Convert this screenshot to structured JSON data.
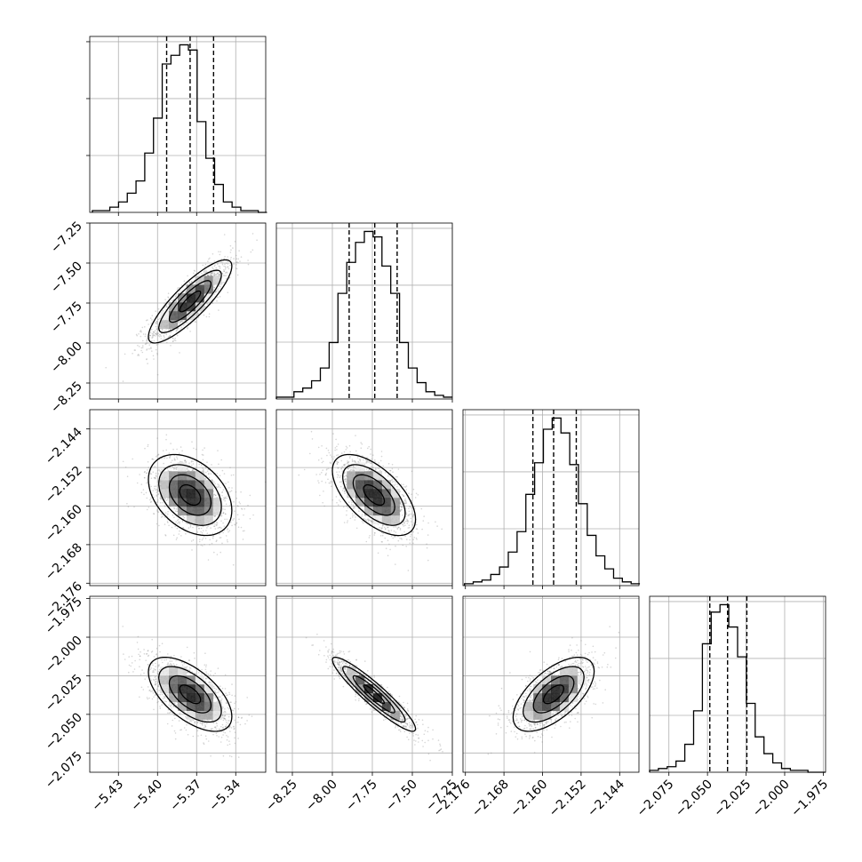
{
  "chart_data": {
    "type": "corner",
    "parameters": [
      {
        "range": [
          -5.452,
          -5.317
        ],
        "ticks": [
          -5.43,
          -5.4,
          -5.37,
          -5.34
        ],
        "tick_labels": [
          "−5.43",
          "−5.40",
          "−5.37",
          "−5.34"
        ],
        "quantiles": [
          -5.393,
          -5.375,
          -5.357
        ],
        "hist": {
          "edges_start": -5.45,
          "bin_width": 0.0067,
          "counts": [
            1,
            1,
            3,
            6,
            11,
            18,
            34,
            54,
            85,
            90,
            96,
            93,
            52,
            31,
            16,
            6,
            3,
            1,
            1,
            0
          ]
        }
      },
      {
        "range": [
          -8.35,
          -7.25
        ],
        "ticks": [
          -8.25,
          -8.0,
          -7.75,
          -7.5,
          -7.25
        ],
        "tick_labels": [
          "−8.25",
          "−8.00",
          "−7.75",
          "−7.50",
          "−7.25"
        ],
        "quantiles": [
          -7.895,
          -7.735,
          -7.595
        ],
        "hist": {
          "edges_start": -8.35,
          "bin_width": 0.055,
          "counts": [
            1,
            1,
            4,
            6,
            10,
            17,
            31,
            58,
            75,
            86,
            92,
            89,
            73,
            58,
            31,
            17,
            9,
            4,
            2,
            1
          ]
        }
      },
      {
        "range": [
          -2.1765,
          -2.14
        ],
        "ticks": [
          -2.176,
          -2.168,
          -2.16,
          -2.152,
          -2.144
        ],
        "tick_labels": [
          "−2.176",
          "−2.168",
          "−2.160",
          "−2.152",
          "−2.144"
        ],
        "quantiles": [
          -2.162,
          -2.1577,
          -2.153
        ],
        "hist": {
          "edges_start": -2.1762,
          "bin_width": 0.00182,
          "counts": [
            1,
            2,
            3,
            6,
            10,
            18,
            29,
            49,
            66,
            84,
            90,
            82,
            65,
            44,
            27,
            16,
            9,
            4,
            2,
            1
          ]
        }
      },
      {
        "range": [
          -2.0875,
          -1.9735
        ],
        "ticks": [
          -2.075,
          -2.05,
          -2.025,
          -2.0,
          -1.975
        ],
        "tick_labels": [
          "−2.075",
          "−2.050",
          "−2.025",
          "−2.000",
          "−1.975"
        ],
        "quantiles": [
          -2.0485,
          -2.037,
          -2.0245
        ],
        "hist": {
          "edges_start": -2.0875,
          "bin_width": 0.0057,
          "counts": [
            1,
            2,
            3,
            6,
            15,
            33,
            69,
            86,
            90,
            78,
            62,
            37,
            19,
            10,
            5,
            2,
            1,
            1,
            0,
            0
          ]
        }
      }
    ],
    "pairs": [
      {
        "x": 0,
        "y": 1,
        "mean": [
          -5.375,
          -7.74
        ],
        "sd": [
          0.016,
          0.13
        ],
        "corr": 0.85
      },
      {
        "x": 0,
        "y": 2,
        "mean": [
          -5.375,
          -2.1577
        ],
        "sd": [
          0.016,
          0.0042
        ],
        "corr": -0.38
      },
      {
        "x": 1,
        "y": 2,
        "mean": [
          -7.74,
          -2.1577
        ],
        "sd": [
          0.13,
          0.0042
        ],
        "corr": -0.6
      },
      {
        "x": 0,
        "y": 3,
        "mean": [
          -5.375,
          -2.037
        ],
        "sd": [
          0.016,
          0.012
        ],
        "corr": -0.6
      },
      {
        "x": 1,
        "y": 3,
        "mean": [
          -7.74,
          -2.037
        ],
        "sd": [
          0.13,
          0.012
        ],
        "corr": -0.93
      },
      {
        "x": 2,
        "y": 3,
        "mean": [
          -2.1577,
          -2.037
        ],
        "sd": [
          0.0042,
          0.012
        ],
        "corr": 0.62
      }
    ],
    "contour_levels_sigma": [
      0.5,
      1.0,
      1.5,
      2.0
    ],
    "grid": true,
    "colors": {
      "line": "#000000",
      "grid": "#b0b0b0",
      "scatter": "#8a8a8a",
      "density_dark": "#000000",
      "density_light": "#ffffff"
    }
  }
}
